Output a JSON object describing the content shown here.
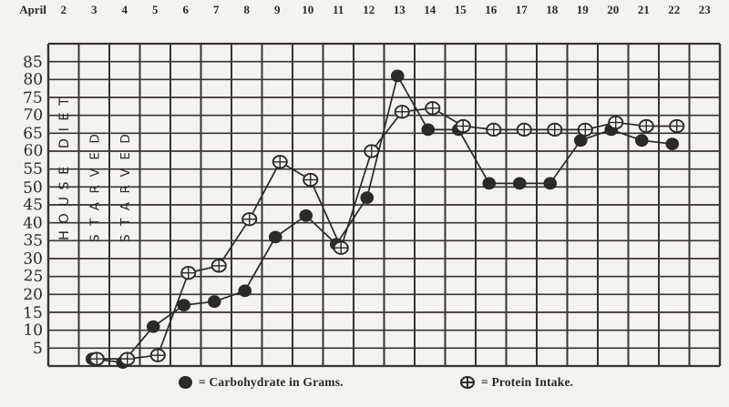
{
  "colors": {
    "ink": "#2c2a26",
    "grid": "#37352f",
    "paper": "#f5f3ee"
  },
  "top_axis": {
    "month_label": "April",
    "dates": [
      "2",
      "3",
      "4",
      "5",
      "6",
      "7",
      "8",
      "9",
      "10",
      "11",
      "12",
      "13",
      "14",
      "15",
      "16",
      "17",
      "18",
      "19",
      "20",
      "21",
      "22",
      "23"
    ]
  },
  "y_axis_labels": [
    "85",
    "80",
    "75",
    "70",
    "65",
    "60",
    "55",
    "50",
    "45",
    "40",
    "35",
    "30",
    "25",
    "20",
    "15",
    "10",
    "5"
  ],
  "legend": {
    "items": [
      {
        "symbol": "filled-circle",
        "label": "= Carbohydrate in Grams."
      },
      {
        "symbol": "crossed-circle",
        "label": "= Protein Intake."
      }
    ]
  },
  "chart_data": {
    "type": "line",
    "x_axis_label": "April",
    "x_axis_position": "top",
    "x_dates_shown": [
      2,
      23
    ],
    "x": [
      3,
      4,
      5,
      6,
      7,
      8,
      9,
      10,
      11,
      12,
      13,
      14,
      15,
      16,
      17,
      18,
      19,
      20,
      21,
      22
    ],
    "series": [
      {
        "name": "Carbohydrate in Grams",
        "marker": "filled-circle",
        "values": [
          2,
          1,
          11,
          17,
          18,
          21,
          36,
          42,
          34,
          47,
          81,
          66,
          66,
          51,
          51,
          51,
          63,
          66,
          63,
          62
        ]
      },
      {
        "name": "Protein Intake",
        "marker": "crossed-circle",
        "values": [
          2,
          2,
          3,
          26,
          28,
          41,
          57,
          52,
          33,
          60,
          71,
          72,
          67,
          66,
          66,
          66,
          66,
          68,
          67,
          67
        ]
      }
    ],
    "ylim": [
      0,
      90
    ],
    "y_tick_step": 5,
    "grid": true,
    "legend_position": "bottom",
    "annotations": [
      {
        "x_date": 2,
        "text": "HOUSE DIET",
        "orientation": "vertical-bottom-up"
      },
      {
        "x_date": 3,
        "text": "STARVED",
        "orientation": "vertical-bottom-up"
      },
      {
        "x_date": 4,
        "text": "STARVED",
        "orientation": "vertical-bottom-up"
      }
    ]
  }
}
